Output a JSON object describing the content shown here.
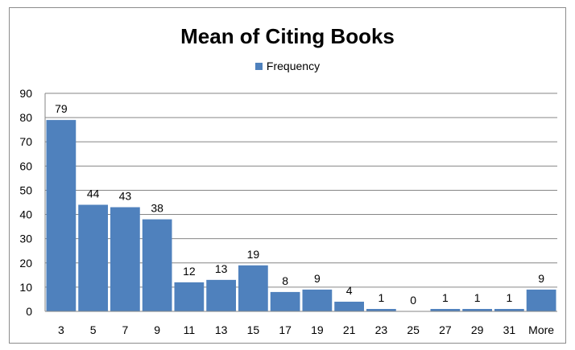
{
  "chart_data": {
    "type": "bar",
    "title": "Mean of Citing Books",
    "xlabel": "",
    "ylabel": "",
    "legend": {
      "position": "top",
      "entries": [
        "Frequency"
      ]
    },
    "grid": true,
    "ylim": [
      0,
      90
    ],
    "yticks": [
      0,
      10,
      20,
      30,
      40,
      50,
      60,
      70,
      80,
      90
    ],
    "categories": [
      "3",
      "5",
      "7",
      "9",
      "11",
      "13",
      "15",
      "17",
      "19",
      "21",
      "23",
      "25",
      "27",
      "29",
      "31",
      "More"
    ],
    "series": [
      {
        "name": "Frequency",
        "color": "#4f81bd",
        "values": [
          79,
          44,
          43,
          38,
          12,
          13,
          19,
          8,
          9,
          4,
          1,
          0,
          1,
          1,
          1,
          9
        ]
      }
    ]
  }
}
